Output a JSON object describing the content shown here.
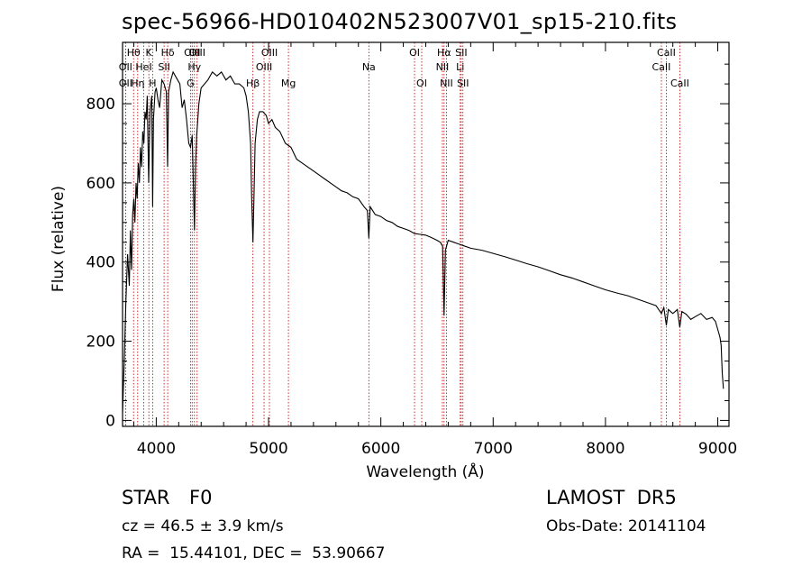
{
  "chart_data": {
    "type": "line",
    "title": "spec-56966-HD010402N523007V01_sp15-210.fits",
    "xlabel": "Wavelength (Å)",
    "ylabel": "Flux (relative)",
    "xlim": [
      3700,
      9100
    ],
    "ylim": [
      -15,
      955
    ],
    "x_ticks": [
      4000,
      5000,
      6000,
      7000,
      8000,
      9000
    ],
    "y_ticks": [
      0,
      200,
      400,
      600,
      800
    ],
    "series": [
      {
        "x": [
          3700,
          3715,
          3730,
          3745,
          3760,
          3770,
          3780,
          3790,
          3800,
          3810,
          3820,
          3830,
          3840,
          3850,
          3860,
          3870,
          3880,
          3890,
          3900,
          3910,
          3920,
          3933,
          3945,
          3960,
          3968,
          3975,
          3990,
          4000,
          4015,
          4030,
          4050,
          4070,
          4090,
          4101,
          4110,
          4130,
          4150,
          4170,
          4190,
          4210,
          4230,
          4250,
          4270,
          4290,
          4305,
          4320,
          4340,
          4350,
          4360,
          4380,
          4400,
          4430,
          4460,
          4500,
          4540,
          4580,
          4620,
          4660,
          4700,
          4740,
          4780,
          4800,
          4820,
          4840,
          4850,
          4861,
          4870,
          4880,
          4900,
          4920,
          4950,
          4980,
          5000,
          5030,
          5060,
          5100,
          5150,
          5200,
          5250,
          5300,
          5350,
          5400,
          5450,
          5500,
          5550,
          5600,
          5650,
          5700,
          5750,
          5800,
          5850,
          5880,
          5893,
          5905,
          5950,
          6000,
          6050,
          6100,
          6150,
          6200,
          6250,
          6300,
          6350,
          6400,
          6450,
          6500,
          6530,
          6550,
          6563,
          6575,
          6600,
          6650,
          6700,
          6750,
          6800,
          6900,
          7000,
          7100,
          7200,
          7300,
          7400,
          7500,
          7600,
          7700,
          7800,
          7900,
          8000,
          8100,
          8200,
          8300,
          8400,
          8450,
          8498,
          8520,
          8542,
          8560,
          8600,
          8640,
          8662,
          8680,
          8720,
          8760,
          8800,
          8850,
          8900,
          8950,
          8980,
          9000,
          9020,
          9030,
          9040,
          9050
        ],
        "y": [
          20,
          150,
          300,
          420,
          340,
          480,
          380,
          520,
          560,
          500,
          600,
          560,
          650,
          600,
          690,
          640,
          730,
          700,
          780,
          760,
          820,
          600,
          780,
          820,
          540,
          760,
          830,
          840,
          810,
          790,
          860,
          850,
          830,
          640,
          830,
          860,
          880,
          870,
          860,
          850,
          790,
          810,
          760,
          700,
          690,
          720,
          480,
          640,
          720,
          800,
          840,
          850,
          860,
          880,
          870,
          880,
          860,
          870,
          850,
          850,
          840,
          820,
          780,
          700,
          560,
          450,
          560,
          700,
          760,
          780,
          780,
          770,
          750,
          760,
          740,
          730,
          700,
          690,
          660,
          650,
          640,
          630,
          620,
          610,
          600,
          590,
          580,
          575,
          565,
          560,
          540,
          530,
          460,
          540,
          520,
          515,
          505,
          500,
          490,
          485,
          480,
          472,
          470,
          468,
          462,
          455,
          450,
          440,
          265,
          430,
          455,
          450,
          445,
          440,
          435,
          430,
          422,
          414,
          405,
          396,
          388,
          378,
          368,
          360,
          350,
          340,
          330,
          322,
          315,
          305,
          295,
          290,
          270,
          285,
          240,
          280,
          270,
          280,
          235,
          275,
          268,
          255,
          262,
          270,
          255,
          260,
          250,
          230,
          210,
          190,
          120,
          80
        ]
      }
    ],
    "lines": [
      {
        "label": "Hθ",
        "x": 3798,
        "row": 1
      },
      {
        "label": "OII",
        "x": 3727,
        "row": 2
      },
      {
        "label": "OII",
        "x": 3727,
        "row": 3
      },
      {
        "label": "Hη",
        "x": 3835,
        "row": 3
      },
      {
        "label": "HeI",
        "x": 3889,
        "row": 2
      },
      {
        "label": "K",
        "x": 3934,
        "row": 1
      },
      {
        "label": "H",
        "x": 3968,
        "row": 3
      },
      {
        "label": "SII",
        "x": 4070,
        "row": 2
      },
      {
        "label": "Hδ",
        "x": 4102,
        "row": 1
      },
      {
        "label": "G",
        "x": 4305,
        "row": 3
      },
      {
        "label": "OIII",
        "x": 4320,
        "row": 1
      },
      {
        "label": "Hγ",
        "x": 4340,
        "row": 2
      },
      {
        "label": "OIII",
        "x": 4364,
        "row": 1
      },
      {
        "label": "Hβ",
        "x": 4861,
        "row": 3
      },
      {
        "label": "OIII",
        "x": 4960,
        "row": 2
      },
      {
        "label": "OIII",
        "x": 5008,
        "row": 1
      },
      {
        "label": "Mg",
        "x": 5177,
        "row": 3
      },
      {
        "label": "Na",
        "x": 5893,
        "row": 2
      },
      {
        "label": "OI",
        "x": 6300,
        "row": 1
      },
      {
        "label": "OI",
        "x": 6364,
        "row": 3
      },
      {
        "label": "NII",
        "x": 6548,
        "row": 2
      },
      {
        "label": "Hα",
        "x": 6563,
        "row": 1
      },
      {
        "label": "NII",
        "x": 6584,
        "row": 3
      },
      {
        "label": "Li",
        "x": 6707,
        "row": 2
      },
      {
        "label": "SII",
        "x": 6716,
        "row": 1
      },
      {
        "label": "SII",
        "x": 6731,
        "row": 3
      },
      {
        "label": "CaII",
        "x": 8498,
        "row": 2
      },
      {
        "label": "CaII",
        "x": 8542,
        "row": 1
      },
      {
        "label": "CaII",
        "x": 8662,
        "row": 3
      }
    ]
  },
  "footer": {
    "object_type": "STAR",
    "subclass": "F0",
    "survey": "LAMOST  DR5",
    "redshift": "cz = 46.5 ± 3.9 km/s",
    "obs_date": "Obs-Date: 20141104",
    "coords": "RA =  15.44101, DEC =  53.90667"
  },
  "colors": {
    "spectrum": "#000000",
    "line_markers": "#c00000",
    "axes": "#000000"
  }
}
